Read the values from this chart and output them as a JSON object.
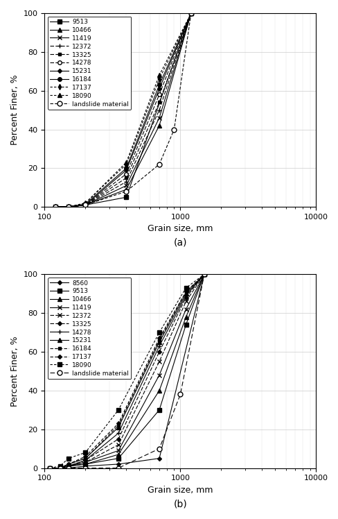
{
  "plot_a": {
    "xlabel": "Grain size, mm",
    "ylabel": "Percent Finer, %",
    "label_a": "(a)",
    "xlim": [
      100,
      10000
    ],
    "ylim": [
      0,
      100
    ],
    "series": [
      {
        "label": "9513",
        "x": [
          120,
          150,
          200,
          400,
          1200
        ],
        "y": [
          0,
          0,
          1,
          5,
          100
        ],
        "linestyle": "-",
        "marker": "s",
        "color": "black",
        "markersize": 4,
        "dashes": null
      },
      {
        "label": "10466",
        "x": [
          120,
          150,
          200,
          400,
          700,
          1200
        ],
        "y": [
          0,
          0,
          1,
          9,
          42,
          100
        ],
        "linestyle": "-",
        "marker": "^",
        "color": "black",
        "markersize": 4,
        "dashes": null
      },
      {
        "label": "11419",
        "x": [
          120,
          150,
          200,
          400,
          700,
          1200
        ],
        "y": [
          0,
          0,
          1,
          11,
          46,
          100
        ],
        "linestyle": "-",
        "marker": "x",
        "color": "black",
        "markersize": 4,
        "dashes": null
      },
      {
        "label": "12372",
        "x": [
          120,
          150,
          200,
          400,
          700,
          1200
        ],
        "y": [
          0,
          0,
          1,
          13,
          50,
          100
        ],
        "linestyle": "--",
        "marker": "+",
        "color": "black",
        "markersize": 5,
        "dashes": [
          5,
          2
        ]
      },
      {
        "label": "13325",
        "x": [
          120,
          150,
          200,
          400,
          700,
          1200
        ],
        "y": [
          0,
          0,
          1,
          15,
          54,
          100
        ],
        "linestyle": "--",
        "marker": "s",
        "color": "black",
        "markersize": 3,
        "dashes": [
          5,
          2
        ]
      },
      {
        "label": "14278",
        "x": [
          120,
          150,
          200,
          400,
          700,
          1200
        ],
        "y": [
          0,
          0,
          1,
          17,
          58,
          100
        ],
        "linestyle": "--",
        "marker": "o",
        "color": "black",
        "markersize": 4,
        "dashes": [
          5,
          2
        ],
        "markerfc": "white"
      },
      {
        "label": "15231",
        "x": [
          120,
          150,
          200,
          400,
          700,
          1200
        ],
        "y": [
          0,
          0,
          1,
          19,
          61,
          100
        ],
        "linestyle": "-",
        "marker": "D",
        "color": "black",
        "markersize": 3,
        "dashes": null
      },
      {
        "label": "16184",
        "x": [
          120,
          150,
          200,
          400,
          700,
          1200
        ],
        "y": [
          0,
          0,
          1.5,
          20,
          63,
          100
        ],
        "linestyle": "-",
        "marker": "o",
        "color": "black",
        "markersize": 4,
        "dashes": null,
        "markerfc": "black"
      },
      {
        "label": "17137",
        "x": [
          120,
          150,
          200,
          400,
          700,
          1200
        ],
        "y": [
          0,
          0,
          2,
          22,
          66,
          100
        ],
        "linestyle": "--",
        "marker": "d",
        "color": "black",
        "markersize": 4,
        "dashes": [
          3,
          2
        ]
      },
      {
        "label": "18090",
        "x": [
          120,
          150,
          200,
          400,
          700,
          1200
        ],
        "y": [
          0,
          0,
          2,
          23,
          68,
          100
        ],
        "linestyle": "--",
        "marker": "^",
        "color": "black",
        "markersize": 4,
        "dashes": [
          3,
          2
        ]
      },
      {
        "label": "landslide material",
        "x": [
          120,
          150,
          200,
          400,
          700,
          900,
          1200
        ],
        "y": [
          0,
          0,
          1,
          8,
          22,
          40,
          100
        ],
        "linestyle": "--",
        "marker": "o",
        "color": "black",
        "markersize": 5,
        "dashes": [
          4,
          2
        ],
        "markerfc": "white"
      }
    ]
  },
  "plot_b": {
    "xlabel": "Grain size, mm",
    "ylabel": "Percent Finer, %",
    "label_b": "(b)",
    "xlim": [
      100,
      10000
    ],
    "ylim": [
      0,
      100
    ],
    "series": [
      {
        "label": "8560",
        "x": [
          110,
          130,
          150,
          200,
          350,
          700,
          1500
        ],
        "y": [
          0,
          0,
          0,
          1,
          2,
          5,
          100
        ],
        "linestyle": "-",
        "marker": "D",
        "color": "black",
        "markersize": 3,
        "dashes": null
      },
      {
        "label": "9513",
        "x": [
          110,
          130,
          150,
          200,
          350,
          700,
          1100,
          1500
        ],
        "y": [
          0,
          0,
          1,
          2,
          5,
          30,
          74,
          100
        ],
        "linestyle": "-",
        "marker": "s",
        "color": "black",
        "markersize": 4,
        "dashes": null
      },
      {
        "label": "10466",
        "x": [
          110,
          130,
          150,
          200,
          350,
          700,
          1100,
          1500
        ],
        "y": [
          0,
          0,
          1,
          2,
          7,
          40,
          78,
          100
        ],
        "linestyle": "-",
        "marker": "^",
        "color": "black",
        "markersize": 4,
        "dashes": null
      },
      {
        "label": "11419",
        "x": [
          110,
          130,
          150,
          200,
          350,
          700,
          1100,
          1500
        ],
        "y": [
          0,
          0,
          1,
          3,
          9,
          48,
          82,
          100
        ],
        "linestyle": "-",
        "marker": "x",
        "color": "black",
        "markersize": 5,
        "dashes": null
      },
      {
        "label": "12372",
        "x": [
          110,
          130,
          150,
          200,
          350,
          700,
          1100,
          1500
        ],
        "y": [
          0,
          0,
          1,
          3,
          12,
          55,
          86,
          100
        ],
        "linestyle": "--",
        "marker": "x",
        "color": "black",
        "markersize": 5,
        "dashes": [
          5,
          2
        ]
      },
      {
        "label": "13325",
        "x": [
          110,
          130,
          150,
          200,
          350,
          700,
          1100,
          1500
        ],
        "y": [
          0,
          0,
          1,
          4,
          15,
          60,
          88,
          100
        ],
        "linestyle": "--",
        "marker": "D",
        "color": "black",
        "markersize": 3,
        "dashes": [
          5,
          2
        ]
      },
      {
        "label": "14278",
        "x": [
          110,
          130,
          150,
          200,
          350,
          700,
          1100,
          1500
        ],
        "y": [
          0,
          0,
          1,
          4,
          18,
          63,
          89,
          100
        ],
        "linestyle": "-",
        "marker": "+",
        "color": "black",
        "markersize": 5,
        "dashes": null
      },
      {
        "label": "15231",
        "x": [
          110,
          130,
          150,
          200,
          350,
          700,
          1100,
          1500
        ],
        "y": [
          0,
          0,
          2,
          5,
          21,
          65,
          90,
          100
        ],
        "linestyle": "-",
        "marker": "^",
        "color": "black",
        "markersize": 4,
        "dashes": null
      },
      {
        "label": "16184",
        "x": [
          110,
          130,
          150,
          200,
          350,
          700,
          1100,
          1500
        ],
        "y": [
          0,
          0,
          2,
          5,
          22,
          66,
          91,
          100
        ],
        "linestyle": "--",
        "marker": "s",
        "color": "black",
        "markersize": 3,
        "dashes": [
          4,
          2
        ]
      },
      {
        "label": "17137",
        "x": [
          110,
          130,
          150,
          200,
          350,
          700,
          1100,
          1500
        ],
        "y": [
          0,
          0,
          2,
          6,
          23,
          67,
          91,
          100
        ],
        "linestyle": "--",
        "marker": "D",
        "color": "black",
        "markersize": 3,
        "dashes": [
          4,
          2
        ]
      },
      {
        "label": "18090",
        "x": [
          110,
          130,
          150,
          200,
          350,
          700,
          1100,
          1500
        ],
        "y": [
          0,
          1,
          5,
          8,
          30,
          70,
          93,
          100
        ],
        "linestyle": "--",
        "marker": "s",
        "color": "black",
        "markersize": 4,
        "dashes": [
          3,
          2
        ]
      },
      {
        "label": "landslide material",
        "x": [
          110,
          130,
          150,
          200,
          350,
          700,
          1000,
          1500
        ],
        "y": [
          0,
          0,
          0,
          0,
          0,
          10,
          38,
          100
        ],
        "linestyle": "--",
        "marker": "o",
        "color": "black",
        "markersize": 5,
        "dashes": [
          6,
          3
        ],
        "markerfc": "white"
      }
    ]
  }
}
